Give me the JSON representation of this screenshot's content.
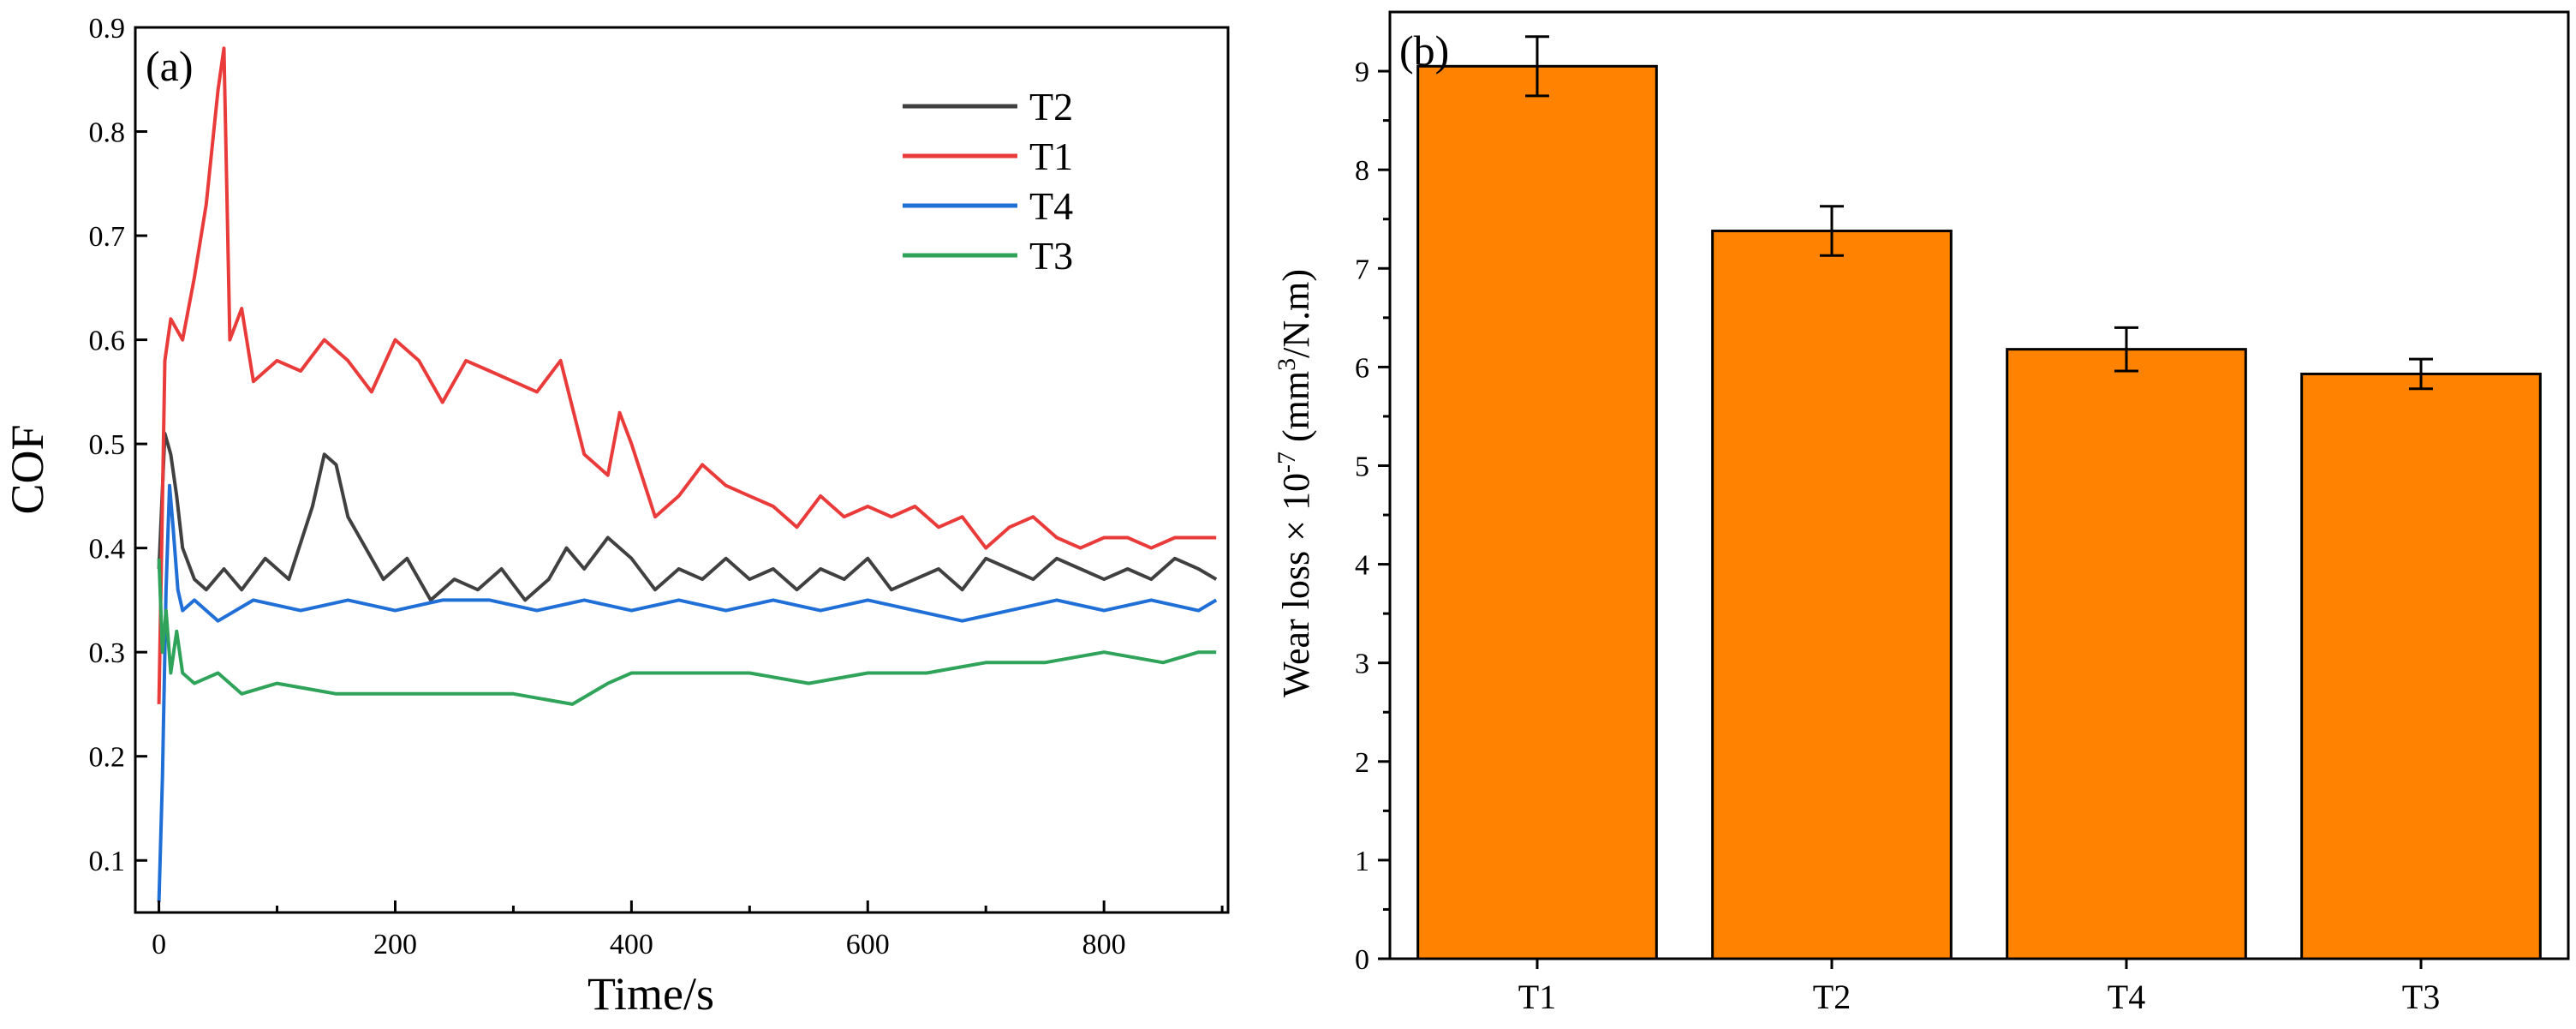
{
  "chart_data": [
    {
      "panel": "(a)",
      "type": "line",
      "title": "",
      "xlabel": "Time/s",
      "ylabel": "COF",
      "xlim": [
        -20,
        905
      ],
      "ylim": [
        0.05,
        0.9
      ],
      "xticks": [
        0,
        200,
        400,
        600,
        800
      ],
      "yticks": [
        0.1,
        0.2,
        0.3,
        0.4,
        0.5,
        0.6,
        0.7,
        0.8,
        0.9
      ],
      "grid": false,
      "legend_position": "top-right",
      "series": [
        {
          "name": "T2",
          "color": "#404040",
          "x": [
            0,
            5,
            10,
            15,
            20,
            30,
            40,
            55,
            70,
            90,
            110,
            130,
            140,
            150,
            160,
            175,
            190,
            210,
            230,
            250,
            270,
            290,
            310,
            330,
            345,
            360,
            380,
            400,
            420,
            440,
            460,
            480,
            500,
            520,
            540,
            560,
            580,
            600,
            620,
            640,
            660,
            680,
            700,
            720,
            740,
            760,
            780,
            800,
            820,
            840,
            860,
            880,
            895
          ],
          "values": [
            0.38,
            0.51,
            0.49,
            0.45,
            0.4,
            0.37,
            0.36,
            0.38,
            0.36,
            0.39,
            0.37,
            0.44,
            0.49,
            0.48,
            0.43,
            0.4,
            0.37,
            0.39,
            0.35,
            0.37,
            0.36,
            0.38,
            0.35,
            0.37,
            0.4,
            0.38,
            0.41,
            0.39,
            0.36,
            0.38,
            0.37,
            0.39,
            0.37,
            0.38,
            0.36,
            0.38,
            0.37,
            0.39,
            0.36,
            0.37,
            0.38,
            0.36,
            0.39,
            0.38,
            0.37,
            0.39,
            0.38,
            0.37,
            0.38,
            0.37,
            0.39,
            0.38,
            0.37
          ]
        },
        {
          "name": "T1",
          "color": "#ea3b3b",
          "x": [
            0,
            5,
            10,
            20,
            30,
            40,
            50,
            55,
            60,
            70,
            80,
            100,
            120,
            140,
            160,
            180,
            200,
            220,
            240,
            260,
            280,
            300,
            320,
            340,
            360,
            380,
            390,
            400,
            420,
            440,
            460,
            480,
            500,
            520,
            540,
            560,
            580,
            600,
            620,
            640,
            660,
            680,
            700,
            720,
            740,
            760,
            780,
            800,
            820,
            840,
            860,
            880,
            895
          ],
          "values": [
            0.25,
            0.58,
            0.62,
            0.6,
            0.66,
            0.73,
            0.84,
            0.88,
            0.6,
            0.63,
            0.56,
            0.58,
            0.57,
            0.6,
            0.58,
            0.55,
            0.6,
            0.58,
            0.54,
            0.58,
            0.57,
            0.56,
            0.55,
            0.58,
            0.49,
            0.47,
            0.53,
            0.5,
            0.43,
            0.45,
            0.48,
            0.46,
            0.45,
            0.44,
            0.42,
            0.45,
            0.43,
            0.44,
            0.43,
            0.44,
            0.42,
            0.43,
            0.4,
            0.42,
            0.43,
            0.41,
            0.4,
            0.41,
            0.41,
            0.4,
            0.41,
            0.41,
            0.41
          ]
        },
        {
          "name": "T4",
          "color": "#1f6fd6",
          "x": [
            0,
            3,
            6,
            9,
            12,
            16,
            20,
            30,
            50,
            80,
            120,
            160,
            200,
            240,
            280,
            320,
            360,
            400,
            440,
            480,
            520,
            560,
            600,
            640,
            680,
            720,
            760,
            800,
            840,
            880,
            895
          ],
          "values": [
            0.06,
            0.18,
            0.36,
            0.46,
            0.42,
            0.36,
            0.34,
            0.35,
            0.33,
            0.35,
            0.34,
            0.35,
            0.34,
            0.35,
            0.35,
            0.34,
            0.35,
            0.34,
            0.35,
            0.34,
            0.35,
            0.34,
            0.35,
            0.34,
            0.33,
            0.34,
            0.35,
            0.34,
            0.35,
            0.34,
            0.35
          ]
        },
        {
          "name": "T3",
          "color": "#2fa35a",
          "x": [
            0,
            3,
            6,
            10,
            15,
            20,
            30,
            50,
            70,
            100,
            150,
            200,
            250,
            300,
            350,
            380,
            400,
            450,
            500,
            550,
            600,
            650,
            700,
            750,
            800,
            850,
            880,
            895
          ],
          "values": [
            0.39,
            0.3,
            0.34,
            0.28,
            0.32,
            0.28,
            0.27,
            0.28,
            0.26,
            0.27,
            0.26,
            0.26,
            0.26,
            0.26,
            0.25,
            0.27,
            0.28,
            0.28,
            0.28,
            0.27,
            0.28,
            0.28,
            0.29,
            0.29,
            0.3,
            0.29,
            0.3,
            0.3
          ]
        }
      ]
    },
    {
      "panel": "(b)",
      "type": "bar",
      "title": "",
      "xlabel": "",
      "ylabel_main": "Wear loss × 10",
      "ylabel_exponent": "-7",
      "ylabel_unit_open": " (mm",
      "ylabel_unit_exponent": "3",
      "ylabel_unit_close": "/N.m)",
      "categories": [
        "T1",
        "T2",
        "T4",
        "T3"
      ],
      "values": [
        9.05,
        7.38,
        6.18,
        5.93
      ],
      "error": [
        0.3,
        0.25,
        0.22,
        0.15
      ],
      "bar_color": "#ff8200",
      "ylim": [
        0,
        9.6
      ],
      "yticks": [
        0,
        1,
        2,
        3,
        4,
        5,
        6,
        7,
        8,
        9
      ],
      "grid": false
    }
  ]
}
